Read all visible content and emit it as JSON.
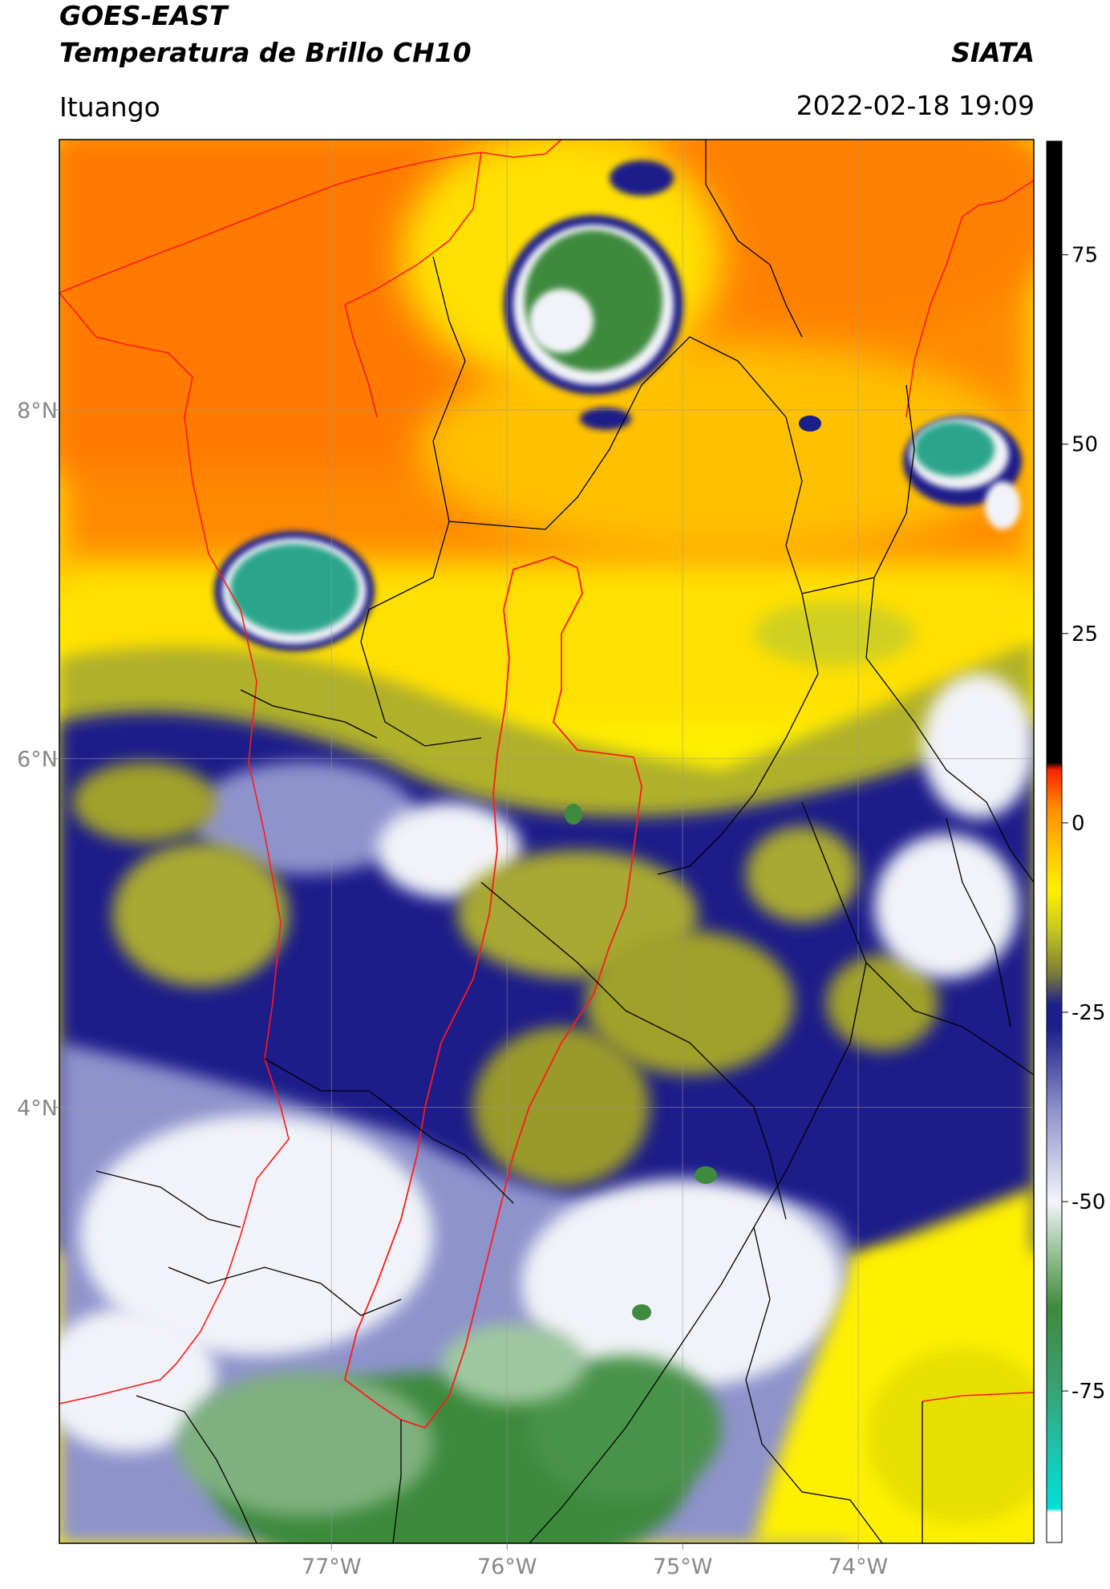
{
  "header": {
    "satellite": "GOES-EAST",
    "product": "Temperatura de Brillo CH10",
    "brand": "SIATA",
    "region": "Ituango",
    "datetime": "2022-02-18 19:09"
  },
  "map": {
    "lon_range": [
      -78.55,
      -73.0
    ],
    "lat_range": [
      1.5,
      9.55
    ],
    "lon_ticks": [
      {
        "value": -77,
        "label": "77°W"
      },
      {
        "value": -76,
        "label": "76°W"
      },
      {
        "value": -75,
        "label": "75°W"
      },
      {
        "value": -74,
        "label": "74°W"
      }
    ],
    "lat_ticks": [
      {
        "value": 8,
        "label": "8°N"
      },
      {
        "value": 6,
        "label": "6°N"
      },
      {
        "value": 4,
        "label": "4°N"
      }
    ],
    "grid": true,
    "colors": {
      "warm_orange": "#ff7a00",
      "orange": "#ffa000",
      "yellow": "#fff000",
      "olive": "#9a9a2a",
      "navy": "#1a1f8a",
      "periwinkle": "#8e93cc",
      "white": "#f2f3f8",
      "green": "#3e8a3e",
      "teal": "#2aa58a",
      "border_colombia": "#ff1a1a",
      "border_admin": "#000000"
    }
  },
  "colorbar": {
    "range": [
      -95,
      90
    ],
    "ticks": [
      75,
      50,
      25,
      0,
      -25,
      -50,
      -75
    ],
    "stops": [
      {
        "value": -95,
        "color": "#ffffff"
      },
      {
        "value": -91,
        "color": "#ffffff"
      },
      {
        "value": -90.5,
        "color": "#00e0d8"
      },
      {
        "value": -82,
        "color": "#1fc0a8"
      },
      {
        "value": -74,
        "color": "#3aa070"
      },
      {
        "value": -64,
        "color": "#3e8a3e"
      },
      {
        "value": -56,
        "color": "#9fc79f"
      },
      {
        "value": -50,
        "color": "#f4f4fa"
      },
      {
        "value": -38,
        "color": "#8e93cc"
      },
      {
        "value": -27,
        "color": "#1a1f8a"
      },
      {
        "value": -24,
        "color": "#1a1f8a"
      },
      {
        "value": -20,
        "color": "#7a7a3a"
      },
      {
        "value": -14,
        "color": "#c8c81e"
      },
      {
        "value": -9,
        "color": "#fff000"
      },
      {
        "value": -4,
        "color": "#ffc800"
      },
      {
        "value": 2,
        "color": "#ff8c00"
      },
      {
        "value": 7,
        "color": "#ff2000"
      },
      {
        "value": 8,
        "color": "#000000"
      },
      {
        "value": 90,
        "color": "#000000"
      }
    ]
  }
}
